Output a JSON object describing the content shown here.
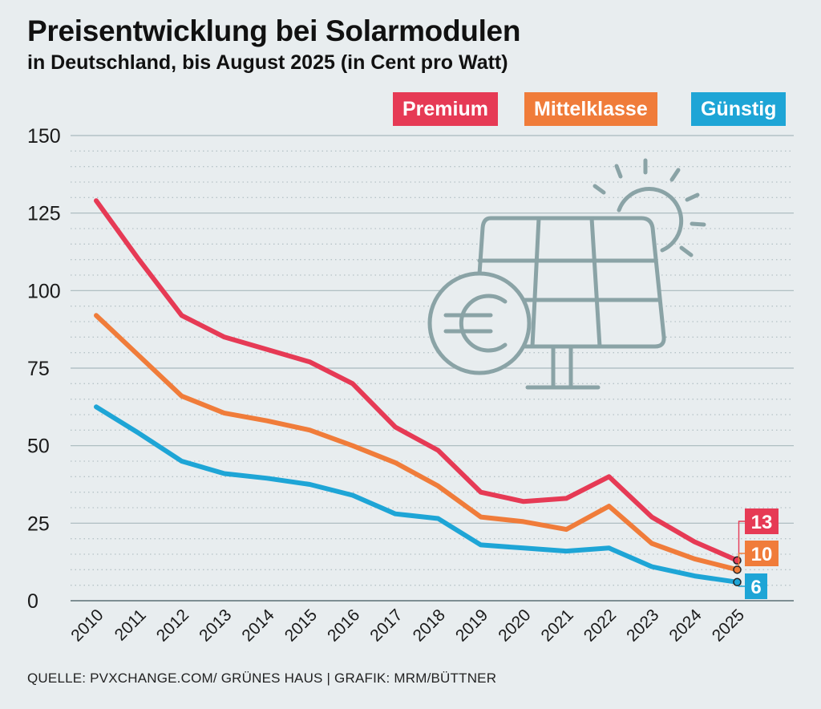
{
  "title": "Preisentwicklung bei Solarmodulen",
  "subtitle": "in Deutschland, bis August 2025 (in Cent pro Watt)",
  "source": "QUELLE: PVXCHANGE.COM/ GRÜNES HAUS | GRAFIK: MRM/BÜTTNER",
  "colors": {
    "premium": "#e63a55",
    "mittelklasse": "#f07c3a",
    "guenstig": "#1ea5d6",
    "grid": "#a8b8bd",
    "icon": "#8aa3a6"
  },
  "icon_name": "solar-panel-euro-icon",
  "chart_data": {
    "type": "line",
    "title": "Preisentwicklung bei Solarmodulen",
    "xlabel": "",
    "ylabel": "Cent pro Watt",
    "categories": [
      "2010",
      "2011",
      "2012",
      "2013",
      "2014",
      "2015",
      "2016",
      "2017",
      "2018",
      "2019",
      "2020",
      "2021",
      "2022",
      "2023",
      "2024",
      "2025"
    ],
    "ylim": [
      0,
      150
    ],
    "yticks": [
      0,
      25,
      50,
      75,
      100,
      125,
      150
    ],
    "legend_position": "top-right",
    "series": [
      {
        "name": "Premium",
        "color": "#e63a55",
        "end_label": "13",
        "values": [
          129,
          110,
          92,
          85,
          81,
          77,
          70,
          56,
          48.5,
          35,
          32,
          33,
          40,
          27,
          19,
          13
        ]
      },
      {
        "name": "Mittelklasse",
        "color": "#f07c3a",
        "end_label": "10",
        "values": [
          92,
          79,
          66,
          60.5,
          58,
          55,
          50,
          44.5,
          37,
          27,
          25.5,
          23,
          30.5,
          18.5,
          13.5,
          10
        ]
      },
      {
        "name": "Günstig",
        "color": "#1ea5d6",
        "end_label": "6",
        "values": [
          62.5,
          54,
          45,
          41,
          39.5,
          37.5,
          34,
          28,
          26.5,
          18,
          17,
          16,
          17,
          11,
          8,
          6
        ]
      }
    ]
  }
}
